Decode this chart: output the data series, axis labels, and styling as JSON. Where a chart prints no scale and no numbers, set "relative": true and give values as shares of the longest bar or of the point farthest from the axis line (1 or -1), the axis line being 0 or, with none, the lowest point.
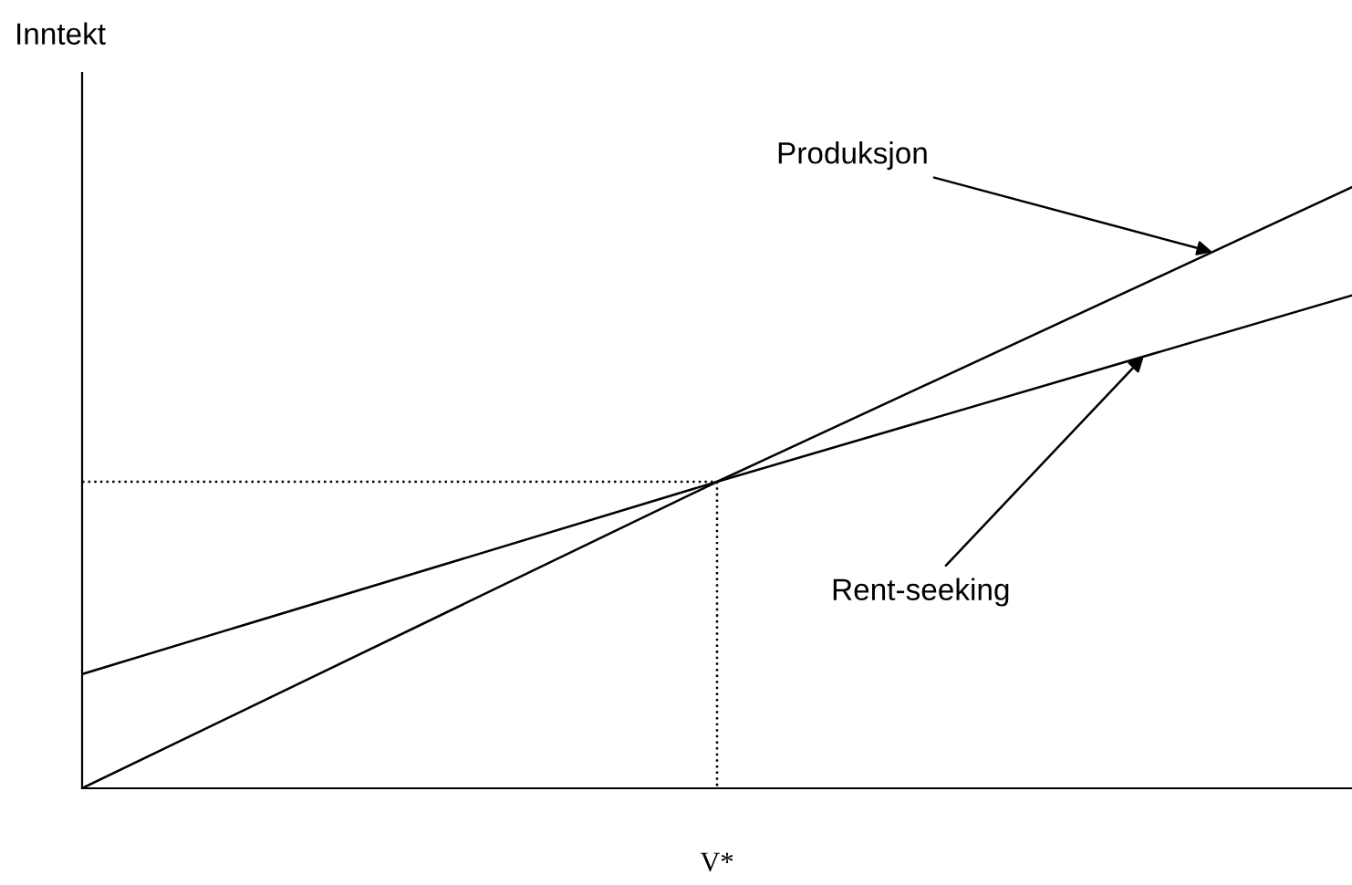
{
  "chart_data": {
    "type": "line",
    "relative": true,
    "ylabel": "Inntekt",
    "categories": [
      null,
      null,
      null
    ],
    "series": [
      {
        "color": "#000000",
        "values": [
          0,
          0.51,
          1
        ]
      },
      {
        "color": "#000000",
        "values": [
          0.19,
          0.51,
          0.82
        ]
      }
    ],
    "ref_lines": [
      {
        "axis": "y",
        "label": "V*",
        "value": 0.51,
        "line_style": "dotted",
        "color": "#000000"
      }
    ],
    "annotations": [
      "Produksjon",
      "Rent-seeking"
    ],
    "legend": false,
    "marker": "none",
    "line_style": "solid"
  }
}
